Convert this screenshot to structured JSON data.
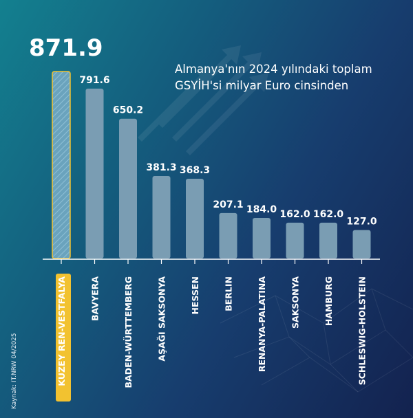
{
  "chart_data": {
    "type": "bar",
    "subtitle": "Almanya'nın 2024 yılındaki toplam GSYİH'si milyar Euro cinsinden",
    "categories": [
      "KUZEY REN-VESTFALYA",
      "BAVYERA",
      "BADEN-WÜRTTEMBERG",
      "AŞAĞI SAKSONYA",
      "HESSEN",
      "BERLIN",
      "RENANYA-PALATINA",
      "SAKSONYA",
      "HAMBURG",
      "SCHLESWIG-HOLSTEIN"
    ],
    "values": [
      871.9,
      791.6,
      650.2,
      381.3,
      368.3,
      207.1,
      184.0,
      162.0,
      162.0,
      127.0
    ],
    "value_labels": [
      "871.9",
      "791.6",
      "650.2",
      "381.3",
      "368.3",
      "207.1",
      "184.0",
      "162.0",
      "162.0",
      "127.0"
    ],
    "highlight_index": 0,
    "colors": {
      "bar": "#7a9db3",
      "highlight_bar": "#6aa3bd",
      "highlight_border": "#f2c230",
      "highlight_label_bg": "#f2c230",
      "highlight_label_text": "#1a2a4a",
      "axis": "#ffffff"
    }
  },
  "source": "Kaynak: IT.NRW 04/2025"
}
